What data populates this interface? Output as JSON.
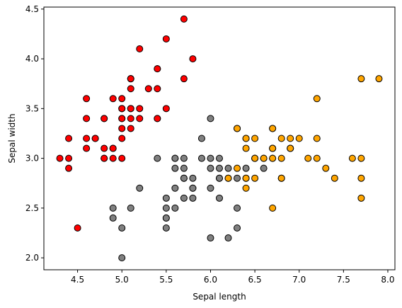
{
  "chart_data": {
    "type": "scatter",
    "title": "",
    "xlabel": "Sepal length",
    "ylabel": "Sepal width",
    "xlim": [
      4.12,
      8.08
    ],
    "ylim": [
      1.88,
      4.52
    ],
    "xticks": [
      4.5,
      5.0,
      5.5,
      6.0,
      6.5,
      7.0,
      7.5,
      8.0
    ],
    "xtick_labels": [
      "4.5",
      "5.0",
      "5.5",
      "6.0",
      "6.5",
      "7.0",
      "7.5",
      "8.0"
    ],
    "yticks": [
      2.0,
      2.5,
      3.0,
      3.5,
      4.0,
      4.5
    ],
    "ytick_labels": [
      "2.0",
      "2.5",
      "3.0",
      "3.5",
      "4.0",
      "4.5"
    ],
    "grid": false,
    "series": [
      {
        "color": "#ff0000",
        "points": [
          [
            5.1,
            3.5
          ],
          [
            4.9,
            3.0
          ],
          [
            4.7,
            3.2
          ],
          [
            4.6,
            3.1
          ],
          [
            5.0,
            3.6
          ],
          [
            5.4,
            3.9
          ],
          [
            4.6,
            3.4
          ],
          [
            5.0,
            3.4
          ],
          [
            4.4,
            2.9
          ],
          [
            4.9,
            3.1
          ],
          [
            5.4,
            3.7
          ],
          [
            4.8,
            3.4
          ],
          [
            4.8,
            3.0
          ],
          [
            4.3,
            3.0
          ],
          [
            5.8,
            4.0
          ],
          [
            5.7,
            4.4
          ],
          [
            5.4,
            3.9
          ],
          [
            5.1,
            3.5
          ],
          [
            5.7,
            3.8
          ],
          [
            5.1,
            3.8
          ],
          [
            5.4,
            3.4
          ],
          [
            5.1,
            3.7
          ],
          [
            4.6,
            3.6
          ],
          [
            5.1,
            3.3
          ],
          [
            4.8,
            3.4
          ],
          [
            5.0,
            3.0
          ],
          [
            5.0,
            3.4
          ],
          [
            5.2,
            3.5
          ],
          [
            5.2,
            3.4
          ],
          [
            4.7,
            3.2
          ],
          [
            4.8,
            3.1
          ],
          [
            5.4,
            3.4
          ],
          [
            5.2,
            4.1
          ],
          [
            5.5,
            4.2
          ],
          [
            4.9,
            3.1
          ],
          [
            5.0,
            3.2
          ],
          [
            5.5,
            3.5
          ],
          [
            4.9,
            3.6
          ],
          [
            4.4,
            3.0
          ],
          [
            5.1,
            3.4
          ],
          [
            5.0,
            3.5
          ],
          [
            4.5,
            2.3
          ],
          [
            4.4,
            3.2
          ],
          [
            5.0,
            3.5
          ],
          [
            5.1,
            3.8
          ],
          [
            4.8,
            3.0
          ],
          [
            5.1,
            3.8
          ],
          [
            4.6,
            3.2
          ],
          [
            5.3,
            3.7
          ],
          [
            5.0,
            3.3
          ]
        ]
      },
      {
        "color": "#808080",
        "points": [
          [
            5.5,
            2.3
          ],
          [
            5.7,
            2.8
          ],
          [
            6.3,
            3.3
          ],
          [
            4.9,
            2.4
          ],
          [
            6.6,
            2.9
          ],
          [
            5.2,
            2.7
          ],
          [
            5.0,
            2.0
          ],
          [
            5.9,
            3.0
          ],
          [
            6.0,
            2.2
          ],
          [
            6.1,
            2.9
          ],
          [
            5.6,
            2.9
          ],
          [
            5.6,
            3.0
          ],
          [
            5.8,
            2.7
          ],
          [
            6.2,
            2.2
          ],
          [
            5.6,
            2.5
          ],
          [
            5.9,
            3.2
          ],
          [
            6.1,
            2.8
          ],
          [
            6.3,
            2.5
          ],
          [
            6.1,
            2.8
          ],
          [
            6.4,
            2.9
          ],
          [
            6.0,
            2.9
          ],
          [
            5.7,
            2.6
          ],
          [
            5.5,
            2.4
          ],
          [
            5.5,
            2.4
          ],
          [
            5.8,
            2.7
          ],
          [
            6.0,
            2.7
          ],
          [
            5.4,
            3.0
          ],
          [
            6.0,
            3.4
          ],
          [
            6.3,
            2.3
          ],
          [
            5.6,
            3.0
          ],
          [
            5.5,
            2.5
          ],
          [
            5.5,
            2.6
          ],
          [
            6.1,
            3.0
          ],
          [
            5.8,
            2.6
          ],
          [
            5.0,
            2.3
          ],
          [
            5.6,
            2.7
          ],
          [
            5.7,
            3.0
          ],
          [
            5.7,
            2.9
          ],
          [
            6.2,
            2.9
          ],
          [
            5.1,
            2.5
          ],
          [
            5.7,
            2.8
          ],
          [
            4.9,
            2.5
          ],
          [
            6.1,
            2.6
          ],
          [
            6.3,
            2.8
          ],
          [
            6.0,
            3.0
          ],
          [
            5.8,
            2.8
          ],
          [
            6.2,
            2.8
          ]
        ]
      },
      {
        "color": "#ffa500",
        "points": [
          [
            7.0,
            3.2
          ],
          [
            6.4,
            3.2
          ],
          [
            6.9,
            3.1
          ],
          [
            6.5,
            2.8
          ],
          [
            6.7,
            3.1
          ],
          [
            6.3,
            3.3
          ],
          [
            6.8,
            2.8
          ],
          [
            6.7,
            3.0
          ],
          [
            7.1,
            3.0
          ],
          [
            6.5,
            3.0
          ],
          [
            7.6,
            3.0
          ],
          [
            7.3,
            2.9
          ],
          [
            6.7,
            2.5
          ],
          [
            7.2,
            3.6
          ],
          [
            6.5,
            3.2
          ],
          [
            6.4,
            2.7
          ],
          [
            6.8,
            3.0
          ],
          [
            6.4,
            3.2
          ],
          [
            6.5,
            3.0
          ],
          [
            7.7,
            3.8
          ],
          [
            7.7,
            2.6
          ],
          [
            6.9,
            3.2
          ],
          [
            7.7,
            2.8
          ],
          [
            6.7,
            3.3
          ],
          [
            7.2,
            3.2
          ],
          [
            6.2,
            2.8
          ],
          [
            6.4,
            2.8
          ],
          [
            7.2,
            3.0
          ],
          [
            7.4,
            2.8
          ],
          [
            7.9,
            3.8
          ],
          [
            6.4,
            2.8
          ],
          [
            7.7,
            3.0
          ],
          [
            6.4,
            3.1
          ],
          [
            6.9,
            3.1
          ],
          [
            6.7,
            3.1
          ],
          [
            6.9,
            3.1
          ],
          [
            6.8,
            3.2
          ],
          [
            6.7,
            3.3
          ],
          [
            6.7,
            3.0
          ],
          [
            6.5,
            3.0
          ],
          [
            6.3,
            2.9
          ],
          [
            6.6,
            3.0
          ],
          [
            6.8,
            2.8
          ],
          [
            6.7,
            3.1
          ],
          [
            6.6,
            3.0
          ]
        ]
      }
    ]
  }
}
